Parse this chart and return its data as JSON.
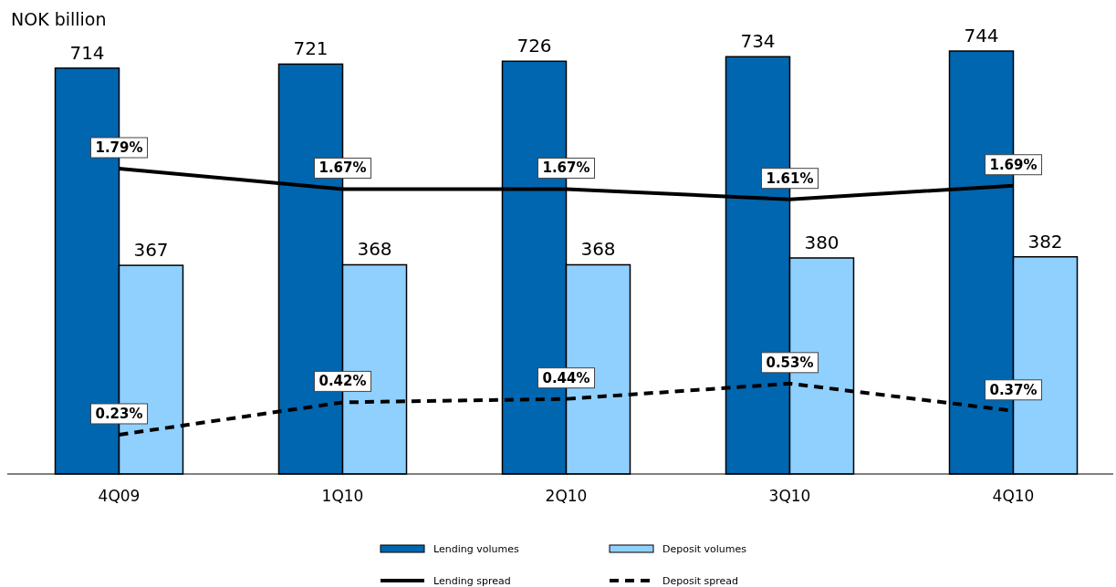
{
  "chart_data": {
    "type": "bar",
    "ylabel": "NOK billion",
    "categories": [
      "4Q09",
      "1Q10",
      "2Q10",
      "3Q10",
      "4Q10"
    ],
    "series": [
      {
        "name": "Lending volumes",
        "type": "bar",
        "color": "#0066b0",
        "values": [
          714,
          721,
          726,
          734,
          744
        ]
      },
      {
        "name": "Deposit volumes",
        "type": "bar",
        "color": "#8fd0ff",
        "values": [
          367,
          368,
          368,
          380,
          382
        ]
      },
      {
        "name": "Lending spread",
        "type": "line",
        "axis": "y2",
        "color": "#000000",
        "line_style": "solid",
        "values": [
          1.79,
          1.67,
          1.67,
          1.61,
          1.69
        ],
        "value_labels": [
          "1.79%",
          "1.67%",
          "1.67%",
          "1.61%",
          "1.69%"
        ]
      },
      {
        "name": "Deposit spread",
        "type": "line",
        "axis": "y2",
        "color": "#000000",
        "line_style": "dashed",
        "values": [
          0.23,
          0.42,
          0.44,
          0.53,
          0.37
        ],
        "value_labels": [
          "0.23%",
          "0.42%",
          "0.44%",
          "0.53%",
          "0.37%"
        ]
      }
    ],
    "tick_labels": "x",
    "data_labels": true,
    "legend": "bottom"
  }
}
